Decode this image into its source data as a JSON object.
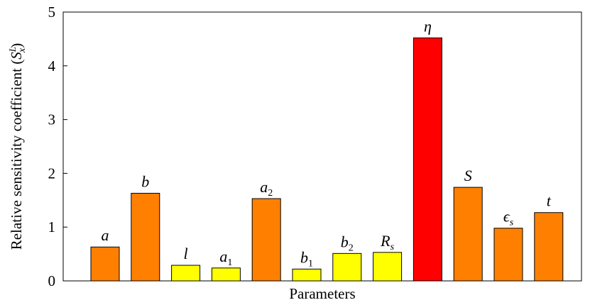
{
  "chart_data": {
    "type": "bar",
    "xlabel": "Parameters",
    "ylabel": {
      "prefix": "Relative sensitivity coefficient (",
      "symbol": "S",
      "superscript": "L",
      "subscript": "x",
      "suffix": ")"
    },
    "ylim": [
      0,
      5
    ],
    "yticks": [
      "0",
      "1",
      "2",
      "3",
      "4",
      "5"
    ],
    "grid": false,
    "categories": [
      {
        "base": "a",
        "sub": ""
      },
      {
        "base": "b",
        "sub": ""
      },
      {
        "base": "l",
        "sub": ""
      },
      {
        "base": "a",
        "sub": "1"
      },
      {
        "base": "a",
        "sub": "2"
      },
      {
        "base": "b",
        "sub": "1"
      },
      {
        "base": "b",
        "sub": "2"
      },
      {
        "base": "R",
        "sub": "s"
      },
      {
        "base": "η",
        "sub": ""
      },
      {
        "base": "S",
        "sub": ""
      },
      {
        "base": "ϵ",
        "sub": "s"
      },
      {
        "base": "t",
        "sub": ""
      }
    ],
    "values": [
      0.63,
      1.63,
      0.29,
      0.24,
      1.53,
      0.22,
      0.51,
      0.53,
      4.52,
      1.74,
      0.98,
      1.27
    ],
    "colors": [
      "#ff8000",
      "#ff8000",
      "#ffff00",
      "#ffff00",
      "#ff8000",
      "#ffff00",
      "#ffff00",
      "#ffff00",
      "#ff0000",
      "#ff8000",
      "#ff8000",
      "#ff8000"
    ]
  }
}
